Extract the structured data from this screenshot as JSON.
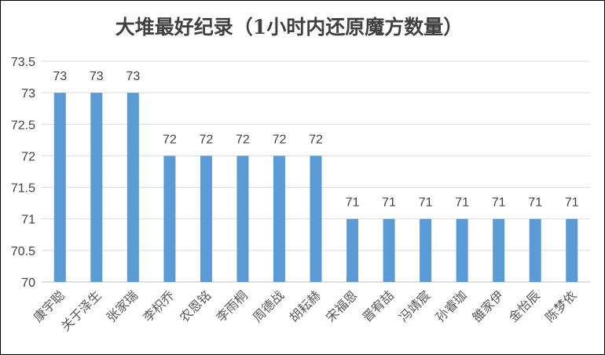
{
  "chart_data": {
    "type": "bar",
    "title": "大堆最好纪录（1小时内还原魔方数量）",
    "xlabel": "",
    "ylabel": "",
    "ylim": [
      70,
      73.5
    ],
    "yticks": [
      "70",
      "70.5",
      "71",
      "71.5",
      "72",
      "72.5",
      "73",
      "73.5"
    ],
    "ytick_values": [
      70,
      70.5,
      71,
      71.5,
      72,
      72.5,
      73,
      73.5
    ],
    "grid": true,
    "legend": "none",
    "bar_color": "#5B9BD5",
    "categories": [
      "康宇聪",
      "关于泽生",
      "张家瑞",
      "李枳乔",
      "农恩铭",
      "李雨桐",
      "周德战",
      "胡耘赫",
      "宋福恩",
      "晋宥喆",
      "冯靖宸",
      "孙睿珈",
      "雒家伊",
      "金怡辰",
      "陈梦依"
    ],
    "values": [
      73,
      73,
      73,
      72,
      72,
      72,
      72,
      72,
      71,
      71,
      71,
      71,
      71,
      71,
      71
    ],
    "data_labels": [
      "73",
      "73",
      "73",
      "72",
      "72",
      "72",
      "72",
      "72",
      "71",
      "71",
      "71",
      "71",
      "71",
      "71",
      "71"
    ]
  }
}
